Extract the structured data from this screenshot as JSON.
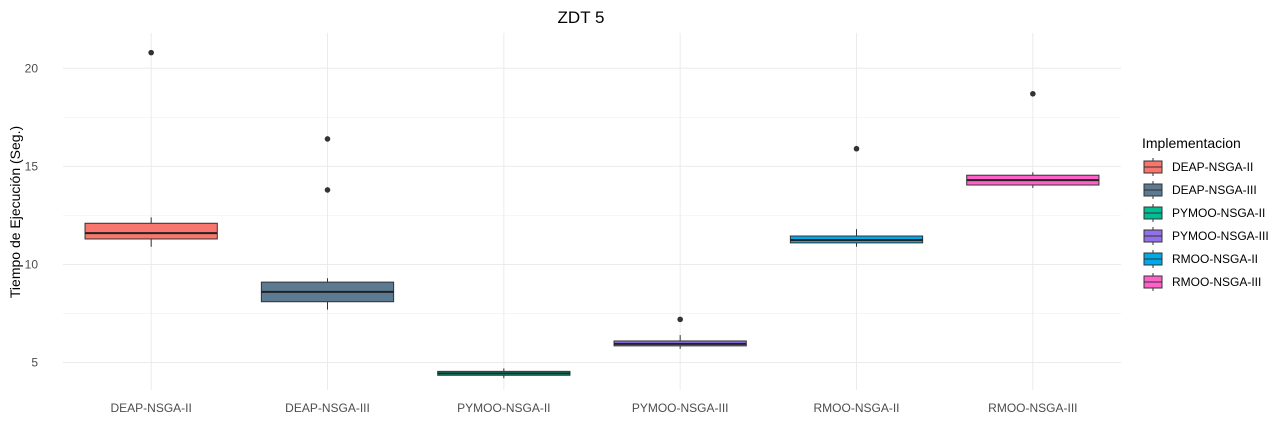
{
  "chart_data": {
    "type": "boxplot",
    "title": "ZDT 5",
    "xlabel": "",
    "ylabel": "Tiempo de Ejecución (Seg.)",
    "ylim": [
      3.6,
      21.8
    ],
    "yticks": [
      5,
      10,
      15,
      20
    ],
    "grid": true,
    "legend": {
      "title": "Implementacion",
      "position": "right"
    },
    "categories": [
      "DEAP-NSGA-II",
      "DEAP-NSGA-III",
      "PYMOO-NSGA-II",
      "PYMOO-NSGA-III",
      "RMOO-NSGA-II",
      "RMOO-NSGA-III"
    ],
    "series": [
      {
        "name": "DEAP-NSGA-II",
        "color": "#F8766D",
        "whisker_low": 10.9,
        "q1": 11.3,
        "median": 11.6,
        "q3": 12.1,
        "whisker_high": 12.4,
        "outliers": [
          20.8
        ]
      },
      {
        "name": "DEAP-NSGA-III",
        "color": "#5C7A91",
        "whisker_low": 7.7,
        "q1": 8.1,
        "median": 8.6,
        "q3": 9.1,
        "whisker_high": 9.3,
        "outliers": [
          16.4,
          13.8
        ]
      },
      {
        "name": "PYMOO-NSGA-II",
        "color": "#00BE93",
        "whisker_low": 4.2,
        "q1": 4.35,
        "median": 4.45,
        "q3": 4.55,
        "whisker_high": 4.7,
        "outliers": []
      },
      {
        "name": "PYMOO-NSGA-III",
        "color": "#9370E8",
        "whisker_low": 5.7,
        "q1": 5.85,
        "median": 5.95,
        "q3": 6.1,
        "whisker_high": 6.4,
        "outliers": [
          7.2
        ]
      },
      {
        "name": "RMOO-NSGA-II",
        "color": "#00A9E8",
        "whisker_low": 10.9,
        "q1": 11.1,
        "median": 11.25,
        "q3": 11.45,
        "whisker_high": 11.8,
        "outliers": [
          15.9
        ]
      },
      {
        "name": "RMOO-NSGA-III",
        "color": "#FF61C9",
        "whisker_low": 13.9,
        "q1": 14.05,
        "median": 14.3,
        "q3": 14.55,
        "whisker_high": 14.7,
        "outliers": [
          18.7
        ]
      }
    ]
  }
}
